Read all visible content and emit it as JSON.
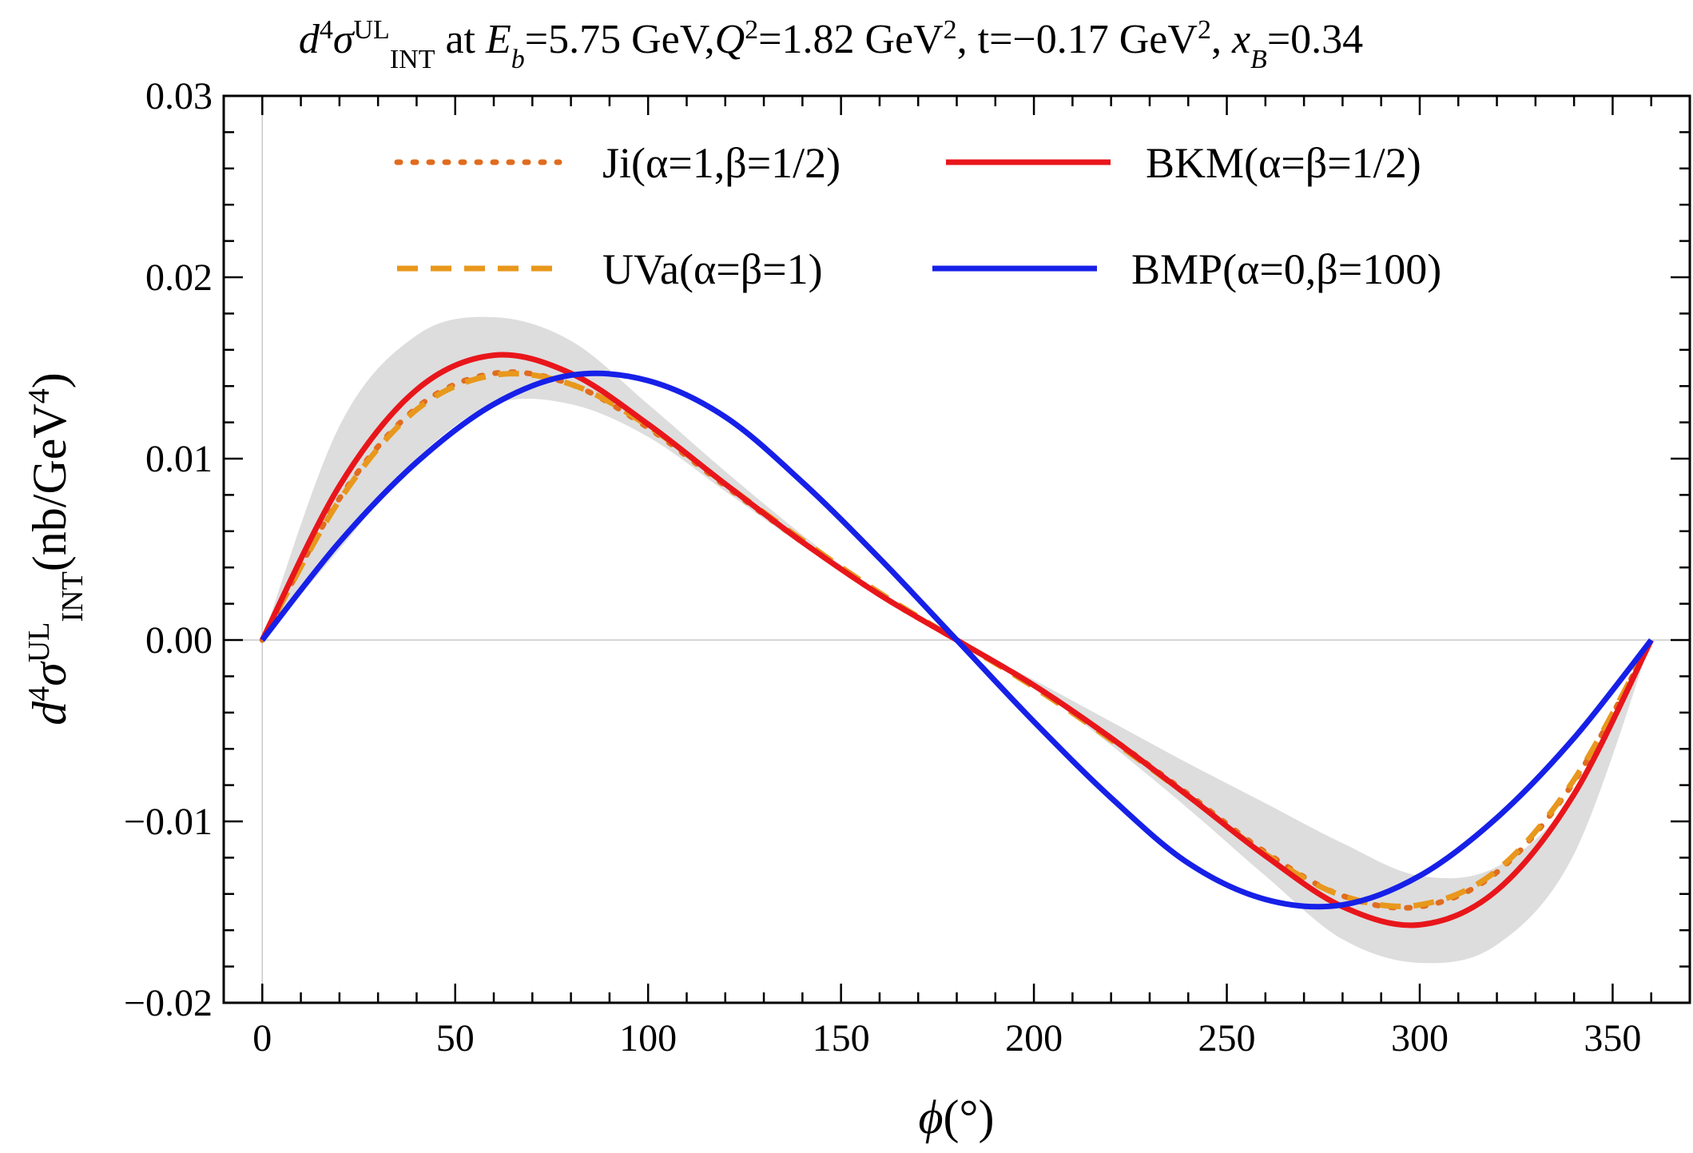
{
  "chart_data": {
    "type": "line",
    "title": {
      "prefix": "d",
      "prefix_sup": "4",
      "sigma": "σ",
      "sigma_sup": "UL",
      "sigma_sub": "INT",
      "at": " at ",
      "eb": "E",
      "eb_sub": "b",
      "eb_val": "=5.75 GeV,",
      "q": "Q",
      "q_sup": "2",
      "q_val": "=1.82 GeV",
      "q_unit_sup": "2",
      "t_val": ", t=−0.17 GeV",
      "t_unit_sup": "2",
      "comma": ", ",
      "xb": "x",
      "xb_sub": "B",
      "xb_val": "=0.34"
    },
    "xlabel": {
      "phi": "ϕ",
      "unit": "(°)"
    },
    "ylabel": {
      "prefix": "d",
      "prefix_sup": "4",
      "sigma": "σ",
      "sigma_sup": "UL",
      "sigma_sub": "INT",
      "unit": "(nb/GeV",
      "unit_sup": "4",
      "close": ")"
    },
    "xlim": [
      -10,
      370
    ],
    "ylim": [
      -0.02,
      0.03
    ],
    "xticks": [
      0,
      50,
      100,
      150,
      200,
      250,
      300,
      350
    ],
    "xtick_labels": [
      "0",
      "50",
      "100",
      "150",
      "200",
      "250",
      "300",
      "350"
    ],
    "yticks": [
      -0.02,
      -0.01,
      0.0,
      0.01,
      0.02,
      0.03
    ],
    "ytick_labels": [
      "−0.02",
      "−0.01",
      "0.00",
      "0.01",
      "0.02",
      "0.03"
    ],
    "band": {
      "name": "uncertainty band",
      "color": "#dddddd",
      "x": [
        0,
        20,
        40,
        60,
        80,
        100,
        120,
        140,
        160,
        180,
        200,
        220,
        240,
        260,
        280,
        300,
        320,
        340,
        360
      ],
      "upper": [
        0.0,
        0.0118,
        0.0168,
        0.0178,
        0.0165,
        0.013,
        0.0093,
        0.0058,
        0.0026,
        0.0,
        -0.0022,
        -0.0045,
        -0.0068,
        -0.009,
        -0.0112,
        -0.013,
        -0.0125,
        -0.0085,
        0.0
      ],
      "lower": [
        0.0,
        0.005,
        0.01,
        0.013,
        0.013,
        0.0112,
        0.0082,
        0.0052,
        0.0024,
        0.0,
        -0.0026,
        -0.0058,
        -0.0093,
        -0.013,
        -0.0165,
        -0.0178,
        -0.0168,
        -0.0118,
        0.0
      ]
    },
    "series": [
      {
        "name": "Ji(α=1,β=1/2)",
        "style": "dotted",
        "color": "#e06c1f",
        "x": [
          0,
          20,
          40,
          60,
          80,
          100,
          120,
          140,
          160,
          180,
          200,
          220,
          240,
          260,
          280,
          300,
          320,
          340,
          360
        ],
        "values": [
          0.0,
          0.0078,
          0.0128,
          0.0147,
          0.0141,
          0.0117,
          0.0085,
          0.0054,
          0.0025,
          0.0,
          -0.0025,
          -0.0054,
          -0.0085,
          -0.0117,
          -0.0141,
          -0.0147,
          -0.0128,
          -0.0078,
          0.0
        ]
      },
      {
        "name": "BKM(α=β=1/2)",
        "style": "solid",
        "color": "#e8161b",
        "x": [
          0,
          20,
          40,
          60,
          80,
          100,
          120,
          140,
          160,
          180,
          200,
          220,
          240,
          260,
          280,
          300,
          320,
          340,
          360
        ],
        "values": [
          0.0,
          0.0085,
          0.0138,
          0.0157,
          0.0147,
          0.0119,
          0.0086,
          0.0054,
          0.0025,
          0.0,
          -0.0025,
          -0.0054,
          -0.0086,
          -0.0119,
          -0.0147,
          -0.0157,
          -0.0138,
          -0.0085,
          0.0
        ]
      },
      {
        "name": "UVa(α=β=1)",
        "style": "dashed",
        "color": "#e8981c",
        "x": [
          0,
          20,
          40,
          60,
          80,
          100,
          120,
          140,
          160,
          180,
          200,
          220,
          240,
          260,
          280,
          300,
          320,
          340,
          360
        ],
        "values": [
          0.0,
          0.0077,
          0.0127,
          0.0146,
          0.0141,
          0.0118,
          0.0086,
          0.0055,
          0.0026,
          0.0,
          -0.0026,
          -0.0055,
          -0.0086,
          -0.0118,
          -0.0141,
          -0.0146,
          -0.0127,
          -0.0077,
          0.0
        ]
      },
      {
        "name": "BMP(α=0,β=100)",
        "style": "solid",
        "color": "#1620e8",
        "x": [
          0,
          20,
          40,
          60,
          80,
          100,
          120,
          140,
          160,
          180,
          200,
          220,
          240,
          260,
          280,
          300,
          320,
          340,
          360
        ],
        "values": [
          0.0,
          0.0054,
          0.0098,
          0.013,
          0.0146,
          0.0143,
          0.0123,
          0.0087,
          0.0045,
          0.0,
          -0.0045,
          -0.0087,
          -0.0123,
          -0.0143,
          -0.0146,
          -0.013,
          -0.0098,
          -0.0054,
          0.0
        ]
      }
    ],
    "legend_position": "top"
  }
}
